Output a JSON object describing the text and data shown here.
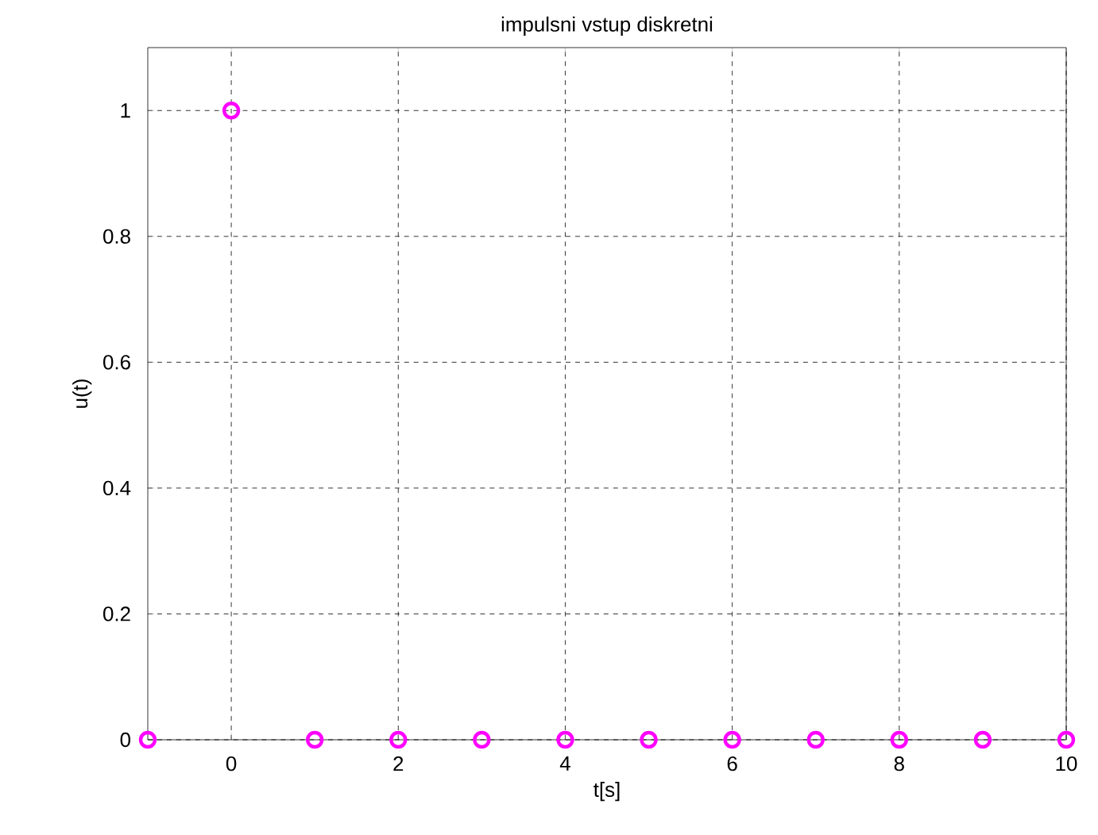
{
  "chart_data": {
    "type": "scatter",
    "title": "impulsni vstup diskretni",
    "xlabel": "t[s]",
    "ylabel": "u(t)",
    "x": [
      -1,
      0,
      1,
      2,
      3,
      4,
      5,
      6,
      7,
      8,
      9,
      10
    ],
    "series": [
      {
        "color": "#ff00ff",
        "values": [
          0,
          1,
          0,
          0,
          0,
          0,
          0,
          0,
          0,
          0,
          0,
          0
        ]
      }
    ],
    "xlim": [
      -1,
      10
    ],
    "ylim": [
      0,
      1.1
    ],
    "xticks": [
      0,
      2,
      4,
      6,
      8,
      10
    ],
    "yticks": [
      0,
      0.2,
      0.4,
      0.6,
      0.8,
      1
    ],
    "grid": true,
    "marker": "circle"
  }
}
